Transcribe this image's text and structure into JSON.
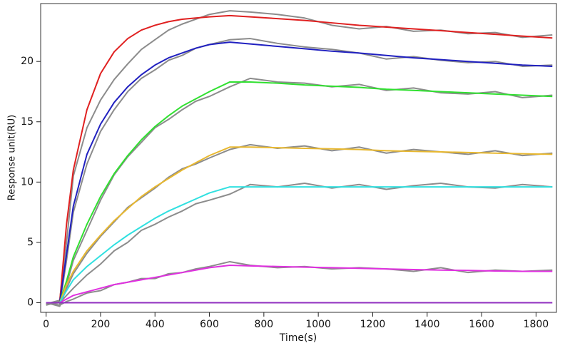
{
  "chart_data": {
    "type": "line",
    "x_label": "Time(s)",
    "y_label": "Response unit(RU)",
    "x": [
      0,
      50,
      75,
      100,
      150,
      200,
      250,
      300,
      350,
      400,
      450,
      500,
      550,
      600,
      675,
      750,
      850,
      950,
      1050,
      1150,
      1250,
      1350,
      1450,
      1550,
      1650,
      1750,
      1860
    ],
    "series": [
      {
        "color": "#8c8c8c",
        "values": [
          -0.1,
          0.2,
          5,
          10.5,
          14.5,
          16.8,
          18.5,
          19.8,
          21,
          21.8,
          22.6,
          23.1,
          23.5,
          23.9,
          24.2,
          24.1,
          23.9,
          23.6,
          23.0,
          22.7,
          22.9,
          22.5,
          22.6,
          22.3,
          22.4,
          22.0,
          22.2
        ]
      },
      {
        "color": "#8c8c8c",
        "values": [
          0,
          -0.2,
          3.5,
          7.5,
          11.5,
          14.2,
          16,
          17.5,
          18.6,
          19.3,
          20.1,
          20.5,
          21.1,
          21.4,
          21.8,
          21.9,
          21.5,
          21.2,
          21.0,
          20.7,
          20.2,
          20.4,
          20.1,
          19.9,
          20.0,
          19.6,
          19.7
        ]
      },
      {
        "color": "#8c8c8c",
        "values": [
          -0.2,
          0.1,
          1.5,
          3.5,
          6.0,
          8.5,
          10.6,
          12.1,
          13.3,
          14.5,
          15.2,
          16.0,
          16.7,
          17.1,
          17.9,
          18.6,
          18.3,
          18.2,
          17.9,
          18.1,
          17.6,
          17.8,
          17.4,
          17.3,
          17.5,
          17.0,
          17.2
        ]
      },
      {
        "color": "#8c8c8c",
        "values": [
          0,
          -0.3,
          1.2,
          2.4,
          4.1,
          5.5,
          6.7,
          7.9,
          8.7,
          9.5,
          10.4,
          11.1,
          11.5,
          12.0,
          12.7,
          13.1,
          12.8,
          13.0,
          12.6,
          12.9,
          12.4,
          12.7,
          12.5,
          12.3,
          12.6,
          12.2,
          12.4
        ]
      },
      {
        "color": "#8c8c8c",
        "values": [
          -0.1,
          0,
          0.6,
          1.2,
          2.3,
          3.2,
          4.3,
          5.0,
          6.0,
          6.5,
          7.1,
          7.6,
          8.2,
          8.5,
          9.0,
          9.8,
          9.6,
          9.9,
          9.5,
          9.8,
          9.4,
          9.7,
          9.9,
          9.6,
          9.5,
          9.8,
          9.6
        ]
      },
      {
        "color": "#8c8c8c",
        "values": [
          0,
          -0.2,
          0.1,
          0.3,
          0.8,
          1.0,
          1.5,
          1.7,
          2.0,
          2.0,
          2.4,
          2.5,
          2.8,
          3.0,
          3.4,
          3.1,
          2.9,
          3.0,
          2.8,
          2.9,
          2.8,
          2.6,
          2.9,
          2.5,
          2.7,
          2.6,
          2.7
        ]
      },
      {
        "color": "#e02020",
        "values": [
          0,
          0,
          6.5,
          11,
          16,
          19,
          20.8,
          21.9,
          22.6,
          23.0,
          23.3,
          23.5,
          23.6,
          23.7,
          23.8,
          23.7,
          23.55,
          23.4,
          23.2,
          23.0,
          22.85,
          22.7,
          22.55,
          22.4,
          22.25,
          22.1,
          21.95
        ]
      },
      {
        "color": "#2020c0",
        "values": [
          0,
          0,
          4,
          8,
          12.3,
          14.8,
          16.6,
          17.9,
          18.9,
          19.7,
          20.3,
          20.7,
          21.1,
          21.4,
          21.6,
          21.45,
          21.25,
          21.05,
          20.85,
          20.7,
          20.5,
          20.3,
          20.15,
          20.0,
          19.85,
          19.7,
          19.6
        ]
      },
      {
        "color": "#30e030",
        "values": [
          0,
          0,
          1.8,
          3.8,
          6.5,
          8.8,
          10.7,
          12.2,
          13.5,
          14.6,
          15.5,
          16.3,
          16.9,
          17.5,
          18.3,
          18.3,
          18.2,
          18.05,
          17.95,
          17.85,
          17.7,
          17.6,
          17.5,
          17.4,
          17.3,
          17.2,
          17.1
        ]
      },
      {
        "color": "#e8b830",
        "values": [
          0,
          0,
          1.5,
          2.6,
          4.3,
          5.6,
          6.8,
          7.8,
          8.8,
          9.6,
          10.3,
          11.0,
          11.6,
          12.2,
          12.9,
          12.9,
          12.85,
          12.8,
          12.75,
          12.7,
          12.6,
          12.55,
          12.5,
          12.45,
          12.4,
          12.35,
          12.3
        ]
      },
      {
        "color": "#30e0e0",
        "values": [
          0,
          0,
          1.0,
          1.9,
          3.0,
          3.9,
          4.8,
          5.6,
          6.3,
          7.0,
          7.6,
          8.1,
          8.6,
          9.1,
          9.6,
          9.6,
          9.6,
          9.6,
          9.6,
          9.6,
          9.6,
          9.6,
          9.6,
          9.6,
          9.6,
          9.6,
          9.6
        ]
      },
      {
        "color": "#e030e0",
        "values": [
          0,
          0,
          0.3,
          0.6,
          0.9,
          1.2,
          1.5,
          1.7,
          1.9,
          2.1,
          2.3,
          2.5,
          2.7,
          2.9,
          3.1,
          3.05,
          3.0,
          2.95,
          2.9,
          2.85,
          2.8,
          2.75,
          2.7,
          2.67,
          2.63,
          2.6,
          2.6
        ]
      },
      {
        "color": "#9030c0",
        "values": [
          0,
          0,
          0,
          0,
          0,
          0,
          0,
          0,
          0,
          0,
          0,
          0,
          0,
          0,
          0,
          0,
          0,
          0,
          0,
          0,
          0,
          0,
          0,
          0,
          0,
          0,
          0
        ]
      }
    ],
    "xlim": [
      -20,
      1875
    ],
    "ylim": [
      -0.8,
      24.8
    ],
    "xticks": [
      0,
      200,
      400,
      600,
      800,
      1000,
      1200,
      1400,
      1600,
      1800
    ],
    "yticks": [
      0,
      5,
      10,
      15,
      20
    ],
    "grid": false
  }
}
